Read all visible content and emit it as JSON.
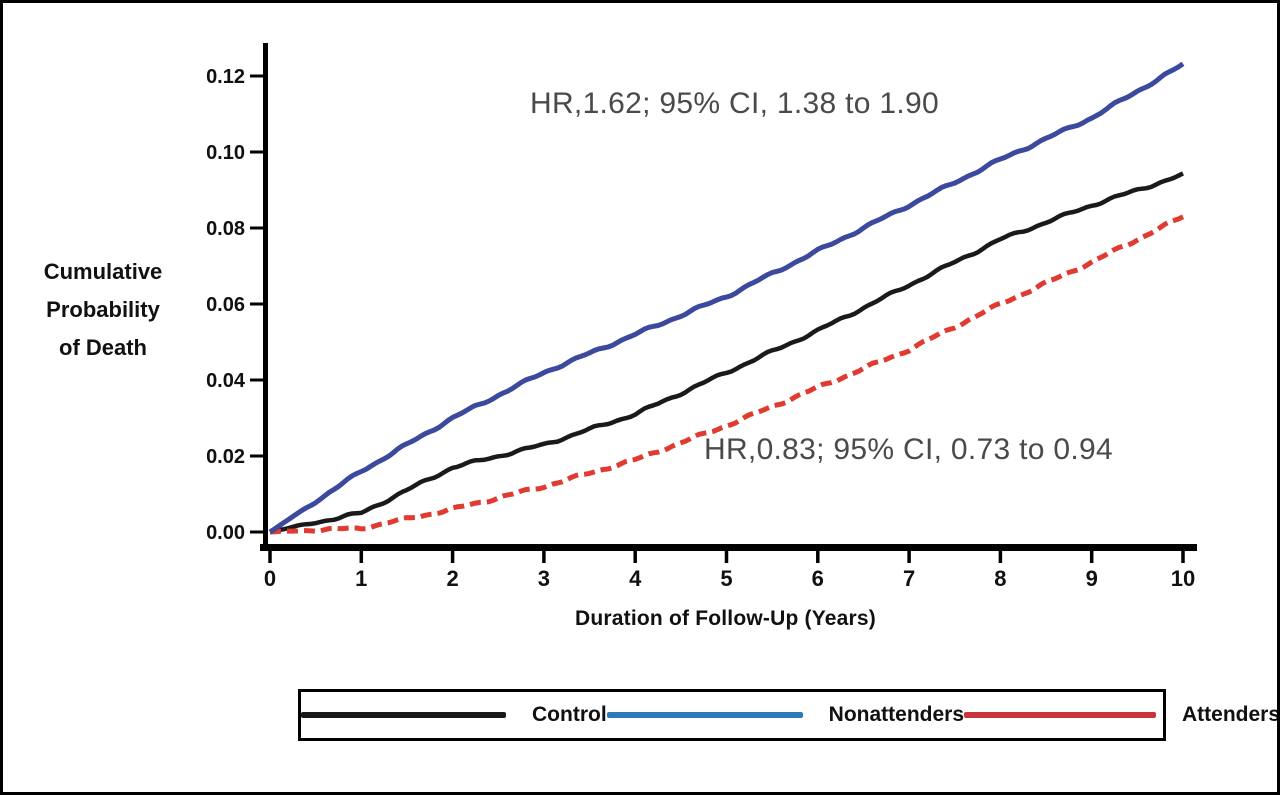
{
  "figure": {
    "background": "#ffffff",
    "border_color": "#000000"
  },
  "chart_data": {
    "type": "line",
    "title": "",
    "xlabel": "Duration of Follow-Up (Years)",
    "ylabel": "Cumulative Probability of Death",
    "ylabel_lines": [
      "Cumulative",
      "Probability",
      "of Death"
    ],
    "x": [
      0,
      1,
      2,
      3,
      4,
      5,
      6,
      7,
      8,
      9,
      10
    ],
    "xlim": [
      0,
      10
    ],
    "ylim": [
      0,
      0.125
    ],
    "x_ticks": [
      "0",
      "1",
      "2",
      "3",
      "4",
      "5",
      "6",
      "7",
      "8",
      "9",
      "10"
    ],
    "y_ticks": [
      "0.00",
      "0.02",
      "0.04",
      "0.06",
      "0.08",
      "0.10",
      "0.12"
    ],
    "y_tick_values": [
      0,
      0.02,
      0.04,
      0.06,
      0.08,
      0.1,
      0.12
    ],
    "grid": false,
    "legend_position": "bottom",
    "axis_color": "#000000",
    "annotation_color": "#4a4a4a",
    "series": [
      {
        "name": "Control",
        "color": "#1a1a1a",
        "legend_color": "#1a1a1a",
        "style": "solid",
        "values": [
          0,
          0.005,
          0.017,
          0.023,
          0.031,
          0.042,
          0.053,
          0.065,
          0.077,
          0.086,
          0.094
        ]
      },
      {
        "name": "Nonattenders",
        "color": "#3b4a9c",
        "legend_color": "#2e79b7",
        "style": "solid",
        "values": [
          0,
          0.016,
          0.03,
          0.042,
          0.052,
          0.062,
          0.074,
          0.086,
          0.098,
          0.109,
          0.123
        ]
      },
      {
        "name": "Attenders",
        "color": "#e03a31",
        "legend_color": "#c9333a",
        "style": "dashed",
        "values": [
          0,
          0.001,
          0.006,
          0.012,
          0.019,
          0.028,
          0.038,
          0.048,
          0.06,
          0.071,
          0.083
        ]
      }
    ],
    "annotations": [
      {
        "text": "HR,1.62; 95% CI, 1.38 to 1.90",
        "series": "Nonattenders"
      },
      {
        "text": "HR,0.83; 95% CI, 0.73 to 0.94",
        "series": "Attenders"
      }
    ]
  }
}
